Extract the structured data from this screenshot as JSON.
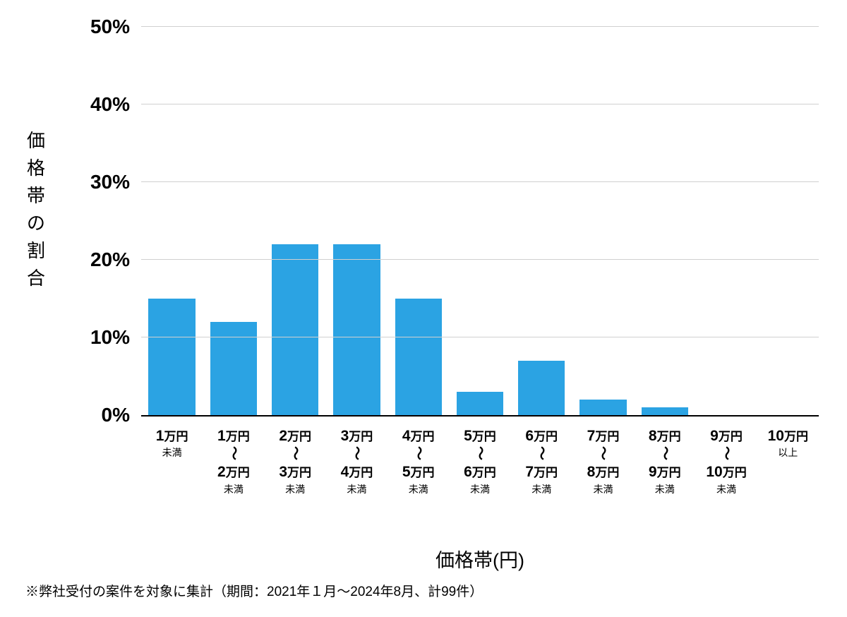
{
  "chart": {
    "type": "bar",
    "y_axis_title": "価格帯の割合",
    "x_axis_title": "価格帯(円)",
    "ymin": 0,
    "ymax": 50,
    "ytick_step": 10,
    "ytick_suffix": "%",
    "bar_color": "#2ba3e3",
    "grid_color": "#d0d0d0",
    "background_color": "#ffffff",
    "axis_color": "#000000",
    "bar_width_ratio": 0.76,
    "y_tick_fontsize": 28,
    "y_tick_fontweight": 700,
    "x_label_fontsize_big": 21,
    "x_label_fontsize_unit": 17,
    "x_label_fontsize_small": 14,
    "y_axis_title_fontsize": 26,
    "x_axis_title_fontsize": 27,
    "categories": [
      {
        "top_num": "1",
        "top_unit": "万円",
        "range": false,
        "bottom_num": "",
        "bottom_unit": "",
        "suffix": "未満",
        "value": 15
      },
      {
        "top_num": "1",
        "top_unit": "万円",
        "range": true,
        "bottom_num": "2",
        "bottom_unit": "万円",
        "suffix": "未満",
        "value": 12
      },
      {
        "top_num": "2",
        "top_unit": "万円",
        "range": true,
        "bottom_num": "3",
        "bottom_unit": "万円",
        "suffix": "未満",
        "value": 22
      },
      {
        "top_num": "3",
        "top_unit": "万円",
        "range": true,
        "bottom_num": "4",
        "bottom_unit": "万円",
        "suffix": "未満",
        "value": 22
      },
      {
        "top_num": "4",
        "top_unit": "万円",
        "range": true,
        "bottom_num": "5",
        "bottom_unit": "万円",
        "suffix": "未満",
        "value": 15
      },
      {
        "top_num": "5",
        "top_unit": "万円",
        "range": true,
        "bottom_num": "6",
        "bottom_unit": "万円",
        "suffix": "未満",
        "value": 3
      },
      {
        "top_num": "6",
        "top_unit": "万円",
        "range": true,
        "bottom_num": "7",
        "bottom_unit": "万円",
        "suffix": "未満",
        "value": 7
      },
      {
        "top_num": "7",
        "top_unit": "万円",
        "range": true,
        "bottom_num": "8",
        "bottom_unit": "万円",
        "suffix": "未満",
        "value": 2
      },
      {
        "top_num": "8",
        "top_unit": "万円",
        "range": true,
        "bottom_num": "9",
        "bottom_unit": "万円",
        "suffix": "未満",
        "value": 1
      },
      {
        "top_num": "9",
        "top_unit": "万円",
        "range": true,
        "bottom_num": "10",
        "bottom_unit": "万円",
        "suffix": "未満",
        "value": 0
      },
      {
        "top_num": "10",
        "top_unit": "万円",
        "range": false,
        "bottom_num": "",
        "bottom_unit": "",
        "suffix": "以上",
        "value": 0
      }
    ]
  },
  "footnote": "※弊社受付の案件を対象に集計（期間：2021年１月〜2024年8月、計99件）"
}
